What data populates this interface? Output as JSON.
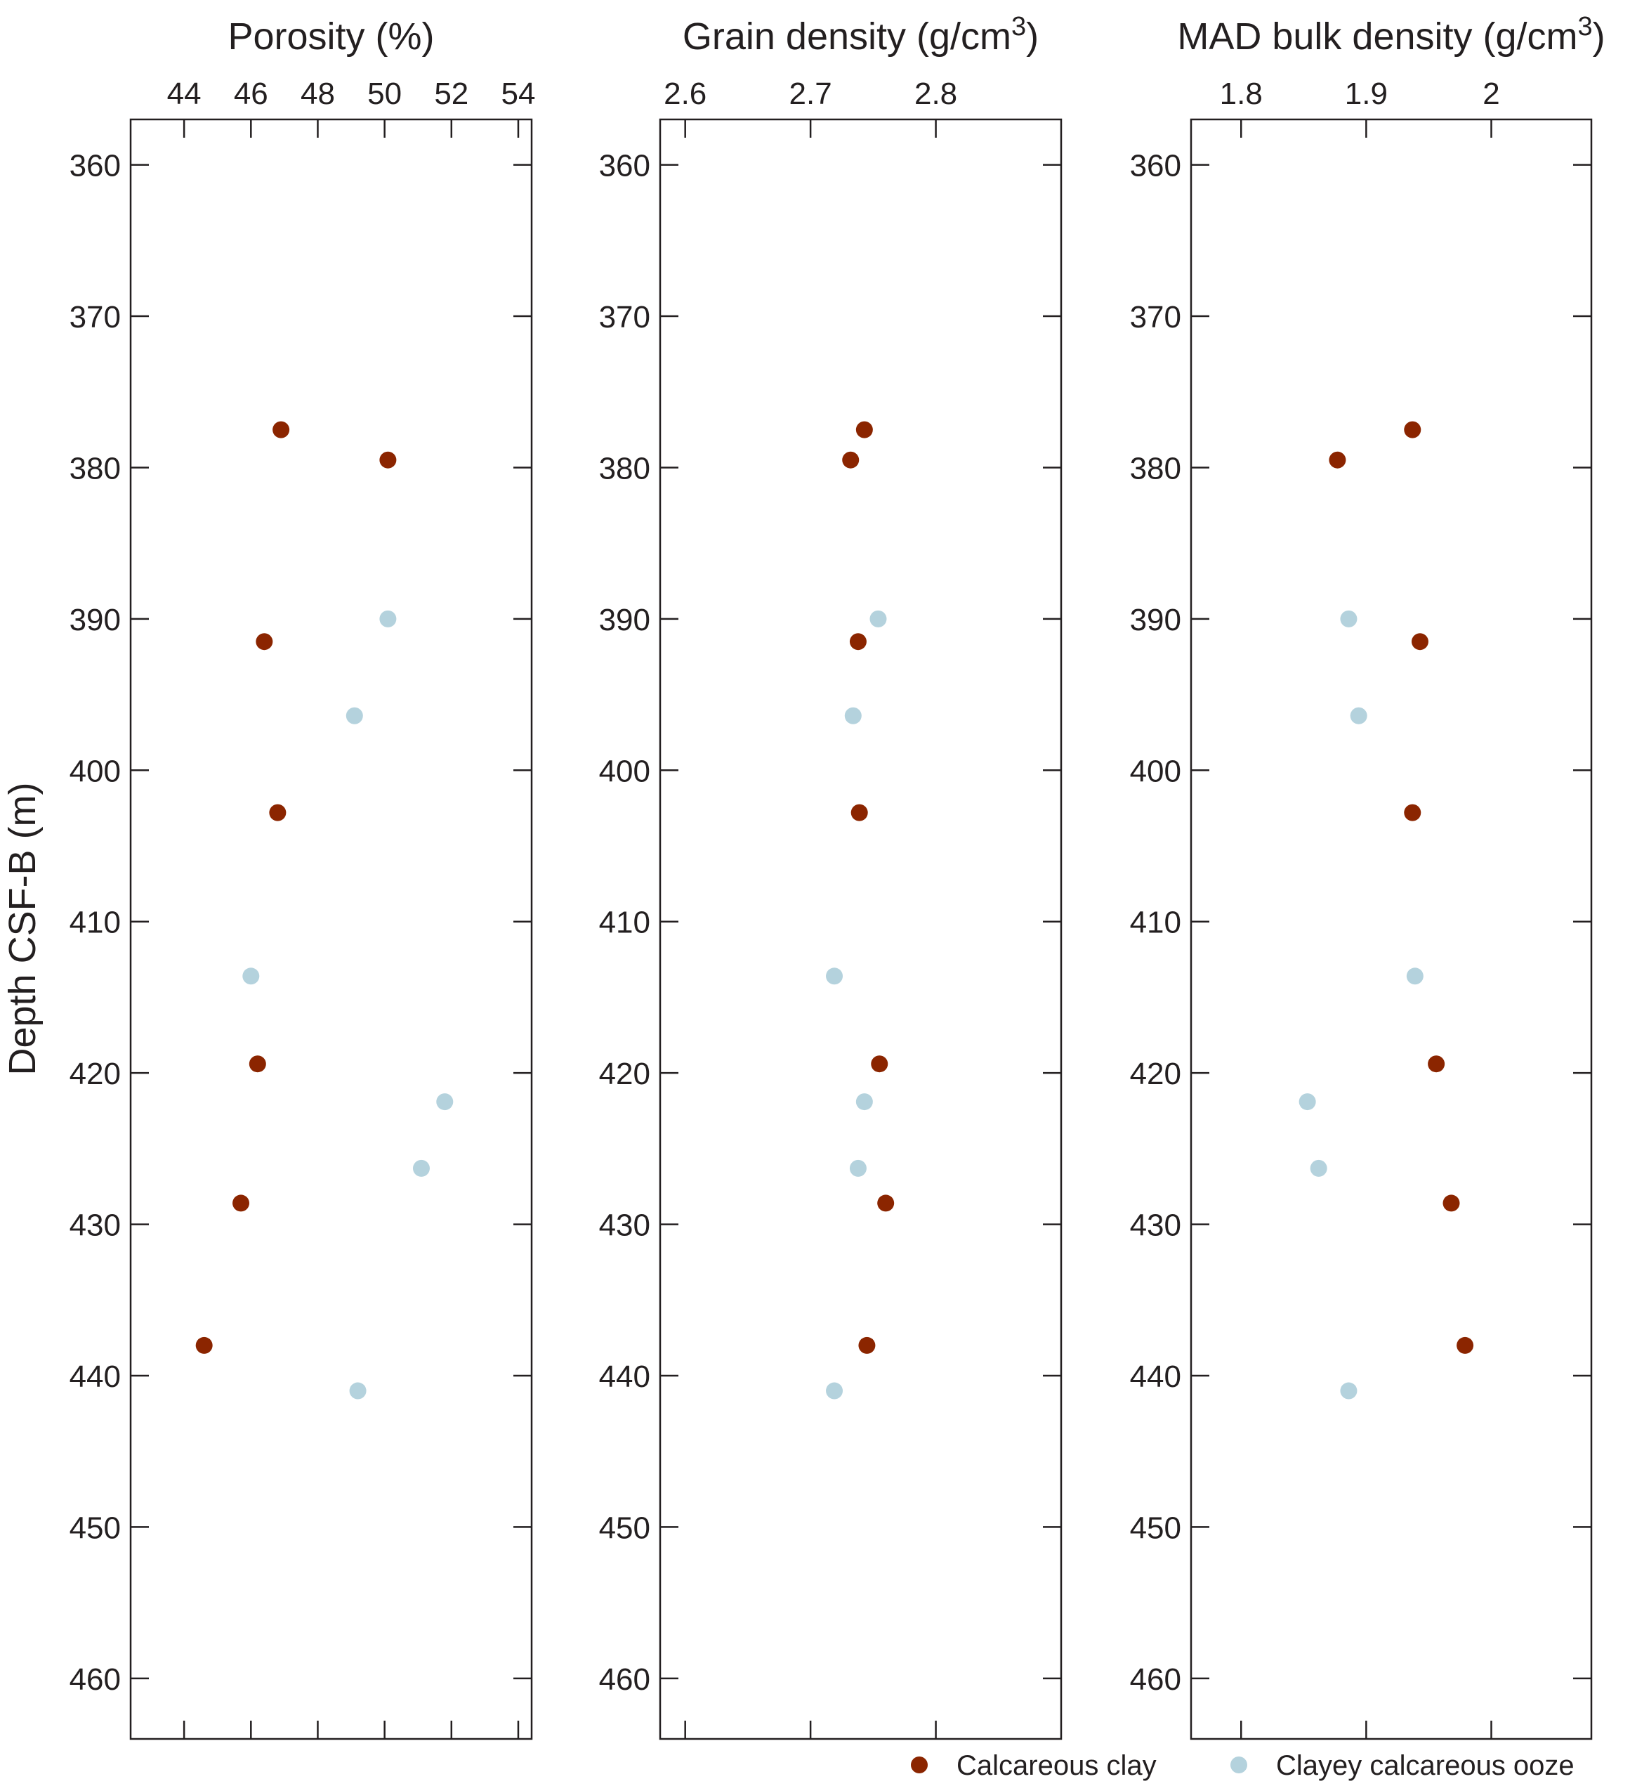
{
  "chart_data": {
    "type": "scatter",
    "ylabel": "Depth CSF-B (m)",
    "ylim": [
      357,
      464
    ],
    "yticks": [
      360,
      370,
      380,
      390,
      400,
      410,
      420,
      430,
      440,
      450,
      460
    ],
    "y_inverted": true,
    "legend_placement": "bottom-right",
    "series": [
      {
        "name": "Calcareous clay",
        "color": "#8b2500"
      },
      {
        "name": "Clayey calcareous ooze",
        "color": "#b4d2dd"
      }
    ],
    "panels": [
      {
        "title_main": "Porosity (%)",
        "title_sup": "",
        "title_tail": "",
        "xlim": [
          42.4,
          54.4
        ],
        "xticks": [
          44,
          46,
          48,
          50,
          52,
          54
        ],
        "xtick_labels": [
          "44",
          "46",
          "48",
          "50",
          "52",
          "54"
        ],
        "series": [
          {
            "name": "Calcareous clay",
            "points": [
              [
                46.9,
                377.5
              ],
              [
                50.1,
                379.5
              ],
              [
                46.4,
                391.5
              ],
              [
                46.8,
                402.8
              ],
              [
                46.2,
                419.4
              ],
              [
                45.7,
                428.6
              ],
              [
                44.6,
                438.0
              ]
            ]
          },
          {
            "name": "Clayey calcareous ooze",
            "points": [
              [
                50.1,
                390.0
              ],
              [
                49.1,
                396.4
              ],
              [
                46.0,
                413.6
              ],
              [
                51.8,
                421.9
              ],
              [
                51.1,
                426.3
              ],
              [
                49.2,
                441.0
              ]
            ]
          }
        ]
      },
      {
        "title_main": "Grain density (g/cm",
        "title_sup": "3",
        "title_tail": ")",
        "xlim": [
          2.58,
          2.9
        ],
        "xticks": [
          2.6,
          2.7,
          2.8
        ],
        "xtick_labels": [
          "2.6",
          "2.7",
          "2.8"
        ],
        "series": [
          {
            "name": "Calcareous clay",
            "points": [
              [
                2.743,
                377.5
              ],
              [
                2.732,
                379.5
              ],
              [
                2.738,
                391.5
              ],
              [
                2.739,
                402.8
              ],
              [
                2.755,
                419.4
              ],
              [
                2.76,
                428.6
              ],
              [
                2.745,
                438.0
              ]
            ]
          },
          {
            "name": "Clayey calcareous ooze",
            "points": [
              [
                2.754,
                390.0
              ],
              [
                2.734,
                396.4
              ],
              [
                2.719,
                413.6
              ],
              [
                2.743,
                421.9
              ],
              [
                2.738,
                426.3
              ],
              [
                2.719,
                441.0
              ]
            ]
          }
        ]
      },
      {
        "title_main": "MAD bulk density (g/cm",
        "title_sup": "3",
        "title_tail": ")",
        "xlim": [
          1.76,
          2.08
        ],
        "xticks": [
          1.8,
          1.9,
          2.0
        ],
        "xtick_labels": [
          "1.8",
          "1.9",
          "2"
        ],
        "series": [
          {
            "name": "Calcareous clay",
            "points": [
              [
                1.937,
                377.5
              ],
              [
                1.877,
                379.5
              ],
              [
                1.943,
                391.5
              ],
              [
                1.937,
                402.8
              ],
              [
                1.956,
                419.4
              ],
              [
                1.968,
                428.6
              ],
              [
                1.979,
                438.0
              ]
            ]
          },
          {
            "name": "Clayey calcareous ooze",
            "points": [
              [
                1.886,
                390.0
              ],
              [
                1.894,
                396.4
              ],
              [
                1.939,
                413.6
              ],
              [
                1.853,
                421.9
              ],
              [
                1.862,
                426.3
              ],
              [
                1.886,
                441.0
              ]
            ]
          }
        ]
      }
    ]
  }
}
